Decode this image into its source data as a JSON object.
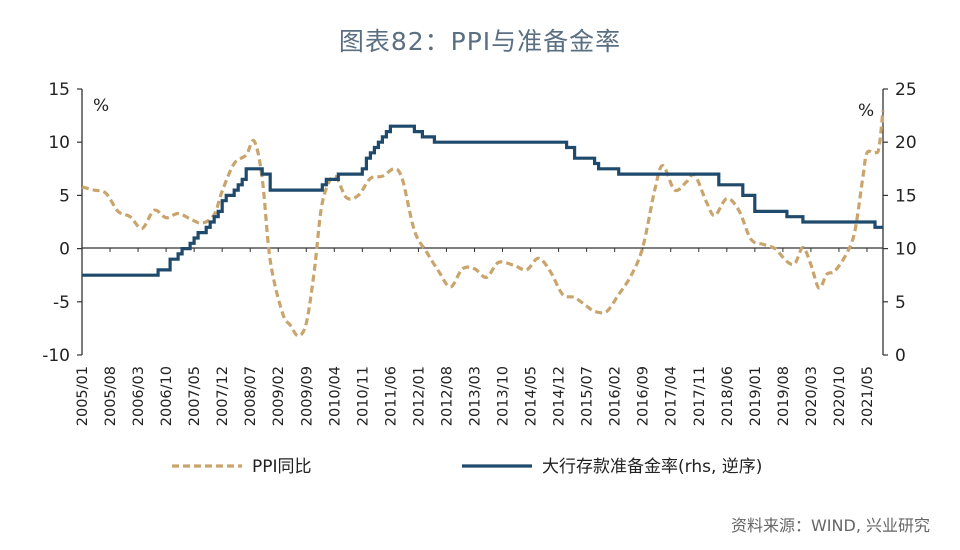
{
  "title": "图表82：PPI与准备金率",
  "source": "资料来源：WIND, 兴业研究",
  "colors": {
    "ppi": "#c9a56d",
    "rrr": "#1f4a6b",
    "axis": "#333333",
    "title": "#5b6f82"
  },
  "chart_data": {
    "type": "line",
    "left_axis": {
      "min": -10,
      "max": 15,
      "ticks": [
        15,
        10,
        5,
        0,
        -5,
        -10
      ],
      "unit": "%"
    },
    "right_axis": {
      "min": 0,
      "max": 25,
      "ticks": [
        25,
        20,
        15,
        10,
        5,
        0
      ],
      "unit": "%"
    },
    "x_tick_labels": [
      "2005/01",
      "2005/08",
      "2006/03",
      "2006/10",
      "2007/05",
      "2007/12",
      "2008/07",
      "2009/02",
      "2009/09",
      "2010/04",
      "2010/11",
      "2011/06",
      "2012/01",
      "2012/08",
      "2013/03",
      "2013/10",
      "2014/05",
      "2014/12",
      "2015/07",
      "2016/02",
      "2016/09",
      "2017/04",
      "2017/11",
      "2018/06",
      "2019/01",
      "2019/08",
      "2020/03",
      "2020/10",
      "2021/05"
    ],
    "x_start": "2005-01",
    "x_end": "2021-09",
    "legend_position": "bottom",
    "series": [
      {
        "name": "PPI同比",
        "axis": "left",
        "style": "dashed",
        "points": [
          [
            "2005-01",
            5.8
          ],
          [
            "2005-04",
            5.5
          ],
          [
            "2005-07",
            5.2
          ],
          [
            "2005-10",
            3.5
          ],
          [
            "2006-01",
            3.0
          ],
          [
            "2006-04",
            1.9
          ],
          [
            "2006-07",
            3.6
          ],
          [
            "2006-10",
            2.9
          ],
          [
            "2007-01",
            3.3
          ],
          [
            "2007-04",
            2.8
          ],
          [
            "2007-07",
            2.4
          ],
          [
            "2007-10",
            3.2
          ],
          [
            "2007-12",
            5.4
          ],
          [
            "2008-03",
            8.0
          ],
          [
            "2008-06",
            8.8
          ],
          [
            "2008-08",
            10.1
          ],
          [
            "2008-10",
            6.6
          ],
          [
            "2008-12",
            -1.1
          ],
          [
            "2009-03",
            -6.0
          ],
          [
            "2009-05",
            -7.2
          ],
          [
            "2009-07",
            -8.2
          ],
          [
            "2009-09",
            -7.0
          ],
          [
            "2009-11",
            -2.1
          ],
          [
            "2010-01",
            4.3
          ],
          [
            "2010-04",
            6.8
          ],
          [
            "2010-07",
            4.8
          ],
          [
            "2010-10",
            5.0
          ],
          [
            "2011-01",
            6.6
          ],
          [
            "2011-04",
            6.8
          ],
          [
            "2011-07",
            7.5
          ],
          [
            "2011-09",
            6.5
          ],
          [
            "2011-12",
            1.7
          ],
          [
            "2012-03",
            -0.3
          ],
          [
            "2012-06",
            -2.1
          ],
          [
            "2012-09",
            -3.6
          ],
          [
            "2012-12",
            -1.9
          ],
          [
            "2013-03",
            -1.9
          ],
          [
            "2013-06",
            -2.7
          ],
          [
            "2013-09",
            -1.3
          ],
          [
            "2014-01",
            -1.6
          ],
          [
            "2014-04",
            -2.0
          ],
          [
            "2014-07",
            -0.9
          ],
          [
            "2014-10",
            -2.2
          ],
          [
            "2015-01",
            -4.3
          ],
          [
            "2015-04",
            -4.6
          ],
          [
            "2015-07",
            -5.4
          ],
          [
            "2015-09",
            -5.9
          ],
          [
            "2015-12",
            -5.9
          ],
          [
            "2016-03",
            -4.3
          ],
          [
            "2016-06",
            -2.6
          ],
          [
            "2016-09",
            0.1
          ],
          [
            "2016-12",
            5.5
          ],
          [
            "2017-02",
            7.8
          ],
          [
            "2017-05",
            5.5
          ],
          [
            "2017-08",
            6.3
          ],
          [
            "2017-10",
            6.9
          ],
          [
            "2018-01",
            4.3
          ],
          [
            "2018-03",
            3.1
          ],
          [
            "2018-06",
            4.7
          ],
          [
            "2018-09",
            3.6
          ],
          [
            "2018-12",
            0.9
          ],
          [
            "2019-03",
            0.4
          ],
          [
            "2019-06",
            0.0
          ],
          [
            "2019-09",
            -1.2
          ],
          [
            "2019-11",
            -1.4
          ],
          [
            "2020-01",
            0.1
          ],
          [
            "2020-03",
            -1.5
          ],
          [
            "2020-05",
            -3.7
          ],
          [
            "2020-07",
            -2.4
          ],
          [
            "2020-09",
            -2.1
          ],
          [
            "2020-12",
            -0.4
          ],
          [
            "2021-02",
            1.7
          ],
          [
            "2021-04",
            6.8
          ],
          [
            "2021-05",
            9.0
          ],
          [
            "2021-07",
            9.0
          ],
          [
            "2021-08",
            9.5
          ],
          [
            "2021-09",
            13.0
          ]
        ]
      },
      {
        "name": "大行存款准备金率(rhs, 逆序)",
        "axis": "right",
        "style": "solid",
        "points": [
          [
            "2005-01",
            7.5
          ],
          [
            "2006-07",
            7.5
          ],
          [
            "2006-08",
            8.0
          ],
          [
            "2006-11",
            9.0
          ],
          [
            "2007-01",
            9.5
          ],
          [
            "2007-02",
            10.0
          ],
          [
            "2007-04",
            10.5
          ],
          [
            "2007-05",
            11.0
          ],
          [
            "2007-06",
            11.5
          ],
          [
            "2007-08",
            12.0
          ],
          [
            "2007-09",
            12.5
          ],
          [
            "2007-10",
            13.0
          ],
          [
            "2007-11",
            13.5
          ],
          [
            "2007-12",
            14.5
          ],
          [
            "2008-01",
            15.0
          ],
          [
            "2008-03",
            15.5
          ],
          [
            "2008-04",
            16.0
          ],
          [
            "2008-05",
            16.5
          ],
          [
            "2008-06",
            17.5
          ],
          [
            "2008-09",
            17.5
          ],
          [
            "2008-10",
            17.0
          ],
          [
            "2008-12",
            15.5
          ],
          [
            "2010-01",
            16.0
          ],
          [
            "2010-02",
            16.5
          ],
          [
            "2010-05",
            17.0
          ],
          [
            "2010-11",
            17.5
          ],
          [
            "2010-12",
            18.5
          ],
          [
            "2011-01",
            19.0
          ],
          [
            "2011-02",
            19.5
          ],
          [
            "2011-03",
            20.0
          ],
          [
            "2011-04",
            20.5
          ],
          [
            "2011-05",
            21.0
          ],
          [
            "2011-06",
            21.5
          ],
          [
            "2011-12",
            21.0
          ],
          [
            "2012-02",
            20.5
          ],
          [
            "2012-05",
            20.0
          ],
          [
            "2015-02",
            19.5
          ],
          [
            "2015-04",
            18.5
          ],
          [
            "2015-09",
            18.0
          ],
          [
            "2015-10",
            17.5
          ],
          [
            "2016-03",
            17.0
          ],
          [
            "2018-04",
            16.0
          ],
          [
            "2018-10",
            15.0
          ],
          [
            "2019-01",
            14.0
          ],
          [
            "2019-01",
            13.5
          ],
          [
            "2019-09",
            13.0
          ],
          [
            "2020-01",
            12.5
          ],
          [
            "2021-07",
            12.0
          ],
          [
            "2021-09",
            12.0
          ]
        ]
      }
    ]
  }
}
